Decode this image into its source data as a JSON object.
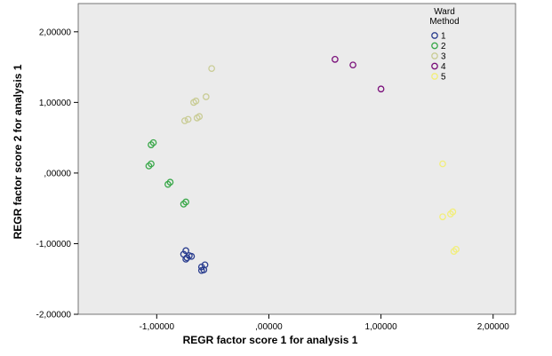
{
  "chart_data": {
    "type": "scatter",
    "xlabel": "REGR factor score   1 for analysis 1",
    "ylabel": "REGR factor score   2 for analysis 1",
    "xlim": [
      -1.7,
      2.2
    ],
    "ylim": [
      -2.0,
      2.4
    ],
    "x_ticks": [
      -1.0,
      0.0,
      1.0,
      2.0
    ],
    "y_ticks": [
      -2.0,
      -1.0,
      0.0,
      1.0,
      2.0
    ],
    "x_tick_labels": [
      "-1,00000",
      ",00000",
      "1,00000",
      "2,00000"
    ],
    "y_tick_labels": [
      "-2,00000",
      "-1,00000",
      ",00000",
      "1,00000",
      "2,00000"
    ],
    "grid": false,
    "plot_background": "#ebebeb",
    "legend": {
      "title_lines": [
        "Ward",
        "Method"
      ],
      "position": "right"
    },
    "series": [
      {
        "name": "1",
        "color": "#2b3e8f",
        "x": [
          -0.74,
          -0.76,
          -0.73,
          -0.71,
          -0.69,
          -0.74,
          -0.57,
          -0.6,
          -0.58,
          -0.6
        ],
        "y": [
          -1.1,
          -1.15,
          -1.2,
          -1.17,
          -1.18,
          -1.22,
          -1.3,
          -1.33,
          -1.37,
          -1.38
        ]
      },
      {
        "name": "2",
        "color": "#3aa84a",
        "x": [
          -1.03,
          -1.05,
          -1.05,
          -1.07,
          -0.88,
          -0.9,
          -0.74,
          -0.76
        ],
        "y": [
          0.43,
          0.4,
          0.13,
          0.1,
          -0.13,
          -0.16,
          -0.41,
          -0.44
        ]
      },
      {
        "name": "3",
        "color": "#c9cc95",
        "x": [
          -0.51,
          -0.56,
          -0.65,
          -0.67,
          -0.62,
          -0.64,
          -0.72,
          -0.75
        ],
        "y": [
          1.48,
          1.08,
          1.02,
          1.0,
          0.8,
          0.78,
          0.76,
          0.74
        ]
      },
      {
        "name": "4",
        "color": "#7a0f7a",
        "x": [
          0.59,
          0.75,
          1.0
        ],
        "y": [
          1.61,
          1.53,
          1.19
        ]
      },
      {
        "name": "5",
        "color": "#f2ee7a",
        "x": [
          1.55,
          1.64,
          1.62,
          1.55,
          1.67,
          1.65
        ],
        "y": [
          0.13,
          -0.55,
          -0.58,
          -0.62,
          -1.08,
          -1.11
        ]
      }
    ]
  }
}
